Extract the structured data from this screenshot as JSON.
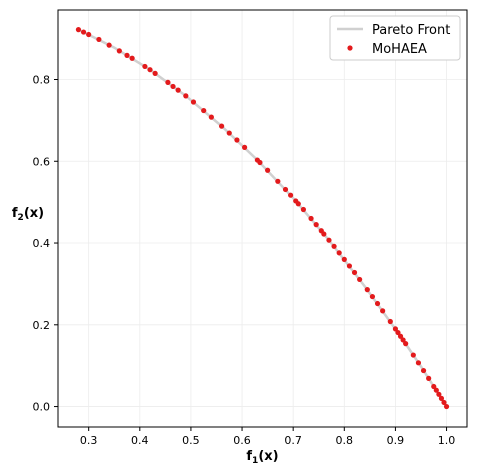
{
  "chart_data": {
    "type": "scatter",
    "xlabel": "f",
    "xlabel_sub": "1",
    "xlabel_suffix": "(x)",
    "ylabel": "f",
    "ylabel_sub": "2",
    "ylabel_suffix": "(x)",
    "xlim": [
      0.24,
      1.04
    ],
    "ylim": [
      -0.05,
      0.97
    ],
    "xticks": [
      0.3,
      0.4,
      0.5,
      0.6,
      0.7,
      0.8,
      0.9,
      1.0
    ],
    "yticks": [
      0.0,
      0.2,
      0.4,
      0.6,
      0.8
    ],
    "xtick_labels": [
      "0.3",
      "0.4",
      "0.5",
      "0.6",
      "0.7",
      "0.8",
      "0.9",
      "1.0"
    ],
    "ytick_labels": [
      "0.0",
      "0.2",
      "0.4",
      "0.6",
      "0.8"
    ],
    "grid": true,
    "legend_position": "top-right",
    "series": [
      {
        "name": "Pareto Front",
        "kind": "line",
        "color": "#d0d0d0",
        "x": [
          0.28,
          0.35,
          0.42,
          0.49,
          0.56,
          0.63,
          0.7,
          0.77,
          0.84,
          0.91,
          0.95,
          1.0
        ],
        "y": [
          0.922,
          0.878,
          0.824,
          0.76,
          0.686,
          0.603,
          0.51,
          0.407,
          0.294,
          0.172,
          0.098,
          0.0
        ]
      },
      {
        "name": "MoHAEA",
        "kind": "scatter",
        "color": "#e31a1c",
        "x": [
          0.28,
          0.29,
          0.3,
          0.32,
          0.34,
          0.36,
          0.375,
          0.385,
          0.41,
          0.42,
          0.43,
          0.455,
          0.465,
          0.475,
          0.49,
          0.505,
          0.525,
          0.54,
          0.56,
          0.575,
          0.59,
          0.605,
          0.63,
          0.635,
          0.65,
          0.67,
          0.685,
          0.695,
          0.705,
          0.71,
          0.72,
          0.735,
          0.745,
          0.755,
          0.76,
          0.77,
          0.78,
          0.79,
          0.8,
          0.81,
          0.82,
          0.83,
          0.845,
          0.855,
          0.865,
          0.875,
          0.89,
          0.9,
          0.905,
          0.91,
          0.915,
          0.92,
          0.935,
          0.945,
          0.955,
          0.965,
          0.975,
          0.98,
          0.985,
          0.99,
          0.995,
          1.0
        ],
        "y": [
          0.922,
          0.916,
          0.91,
          0.898,
          0.884,
          0.87,
          0.859,
          0.852,
          0.832,
          0.824,
          0.815,
          0.793,
          0.783,
          0.774,
          0.76,
          0.745,
          0.724,
          0.708,
          0.686,
          0.669,
          0.652,
          0.634,
          0.603,
          0.597,
          0.578,
          0.551,
          0.531,
          0.517,
          0.503,
          0.496,
          0.482,
          0.46,
          0.445,
          0.43,
          0.422,
          0.407,
          0.392,
          0.376,
          0.36,
          0.344,
          0.328,
          0.311,
          0.286,
          0.269,
          0.252,
          0.234,
          0.208,
          0.19,
          0.181,
          0.172,
          0.163,
          0.154,
          0.126,
          0.107,
          0.088,
          0.069,
          0.049,
          0.04,
          0.03,
          0.02,
          0.01,
          0.0
        ]
      }
    ]
  }
}
